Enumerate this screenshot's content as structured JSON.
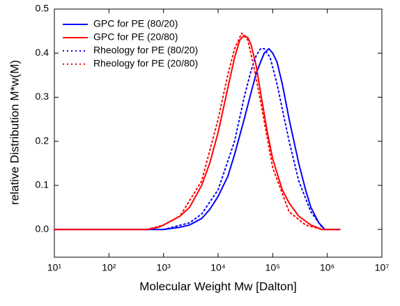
{
  "chart_data": {
    "type": "line",
    "xlabel": "Molecular Weight Mw [Dalton]",
    "ylabel": "relative Distribution M*w(M)",
    "xscale": "log",
    "xlim": [
      10,
      10000000
    ],
    "xticks": [
      {
        "value": 10,
        "label": "10¹"
      },
      {
        "value": 100,
        "label": "10²"
      },
      {
        "value": 1000,
        "label": "10³"
      },
      {
        "value": 10000,
        "label": "10⁴"
      },
      {
        "value": 100000,
        "label": "10⁵"
      },
      {
        "value": 1000000,
        "label": "10⁶"
      },
      {
        "value": 10000000,
        "label": "10⁷"
      }
    ],
    "ylim": [
      -0.063,
      0.5
    ],
    "yticks": [
      {
        "value": 0,
        "label": "0.0"
      },
      0.1,
      0.2,
      0.3,
      0.4,
      0.5
    ],
    "legend": "upper left",
    "series": [
      {
        "name": "GPC for  PE (80/20)",
        "color": "#0000ff",
        "linestyle": "solid",
        "x": [
          10,
          1000,
          2000,
          3000,
          5000,
          7000,
          10000,
          15000,
          20000,
          30000,
          40000,
          50000,
          60000,
          70000,
          85000,
          100000,
          120000,
          150000,
          200000,
          300000,
          400000,
          500000,
          700000,
          900000,
          1700000
        ],
        "values": [
          0,
          0,
          0.005,
          0.01,
          0.025,
          0.045,
          0.075,
          0.12,
          0.17,
          0.25,
          0.31,
          0.355,
          0.38,
          0.4,
          0.41,
          0.4,
          0.38,
          0.33,
          0.25,
          0.15,
          0.09,
          0.05,
          0.015,
          0,
          0
        ]
      },
      {
        "name": "GPC for PE (20/80)",
        "color": "#ff0000",
        "linestyle": "solid",
        "x": [
          10,
          500,
          800,
          1000,
          2000,
          3000,
          5000,
          7000,
          10000,
          15000,
          20000,
          25000,
          30000,
          35000,
          40000,
          50000,
          60000,
          80000,
          100000,
          150000,
          200000,
          300000,
          500000,
          800000,
          1700000
        ],
        "values": [
          0,
          0,
          0.005,
          0.01,
          0.03,
          0.05,
          0.1,
          0.15,
          0.22,
          0.32,
          0.39,
          0.43,
          0.44,
          0.435,
          0.42,
          0.37,
          0.31,
          0.22,
          0.16,
          0.09,
          0.06,
          0.03,
          0.01,
          0,
          0
        ]
      },
      {
        "name": "Rheology for PE (80/20)",
        "color": "#0000ff",
        "linestyle": "dotted",
        "x": [
          1000,
          3000,
          5000,
          10000,
          20000,
          30000,
          40000,
          50000,
          60000,
          70000,
          90000,
          120000,
          200000,
          300000,
          500000,
          800000
        ],
        "values": [
          0,
          0.015,
          0.035,
          0.09,
          0.2,
          0.3,
          0.36,
          0.395,
          0.41,
          0.41,
          0.39,
          0.33,
          0.2,
          0.11,
          0.04,
          0.005
        ]
      },
      {
        "name": "Rheology for PE (20/80)",
        "color": "#ff0000",
        "linestyle": "dotted",
        "x": [
          500,
          1000,
          2000,
          5000,
          10000,
          15000,
          20000,
          27000,
          35000,
          45000,
          60000,
          100000,
          200000,
          400000,
          800000
        ],
        "values": [
          0,
          0.01,
          0.03,
          0.11,
          0.25,
          0.35,
          0.41,
          0.445,
          0.43,
          0.37,
          0.29,
          0.14,
          0.04,
          0.01,
          0
        ]
      }
    ]
  }
}
